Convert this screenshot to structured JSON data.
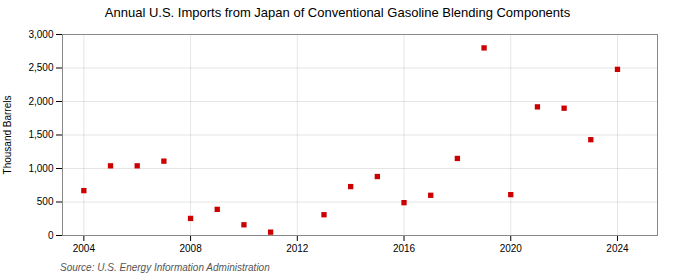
{
  "chart_data": {
    "type": "scatter",
    "title": "Annual U.S. Imports from Japan of Conventional Gasoline Blending Components",
    "ylabel": "Thousand Barrels",
    "source": "Source: U.S. Energy Information Administration",
    "x": [
      2004,
      2005,
      2006,
      2007,
      2008,
      2009,
      2010,
      2011,
      2013,
      2014,
      2015,
      2016,
      2017,
      2018,
      2019,
      2020,
      2021,
      2022,
      2023,
      2024
    ],
    "values": [
      670,
      1040,
      1040,
      1110,
      255,
      390,
      160,
      50,
      310,
      730,
      880,
      490,
      600,
      1150,
      2800,
      610,
      1920,
      1900,
      1430,
      2480
    ],
    "color": "#cc0000",
    "marker": "square",
    "xlim": [
      2003.2,
      2025.5
    ],
    "xticks": [
      2004,
      2008,
      2012,
      2016,
      2020,
      2024
    ],
    "ylim": [
      0,
      3000
    ],
    "yticks": [
      0,
      500,
      {
        "value": 1000,
        "label": "1,000"
      },
      {
        "value": 1500,
        "label": "1,500"
      },
      {
        "value": 2000,
        "label": "2,000"
      },
      {
        "value": 2500,
        "label": "2,500"
      },
      {
        "value": 3000,
        "label": "3,000"
      }
    ],
    "grid": true
  }
}
